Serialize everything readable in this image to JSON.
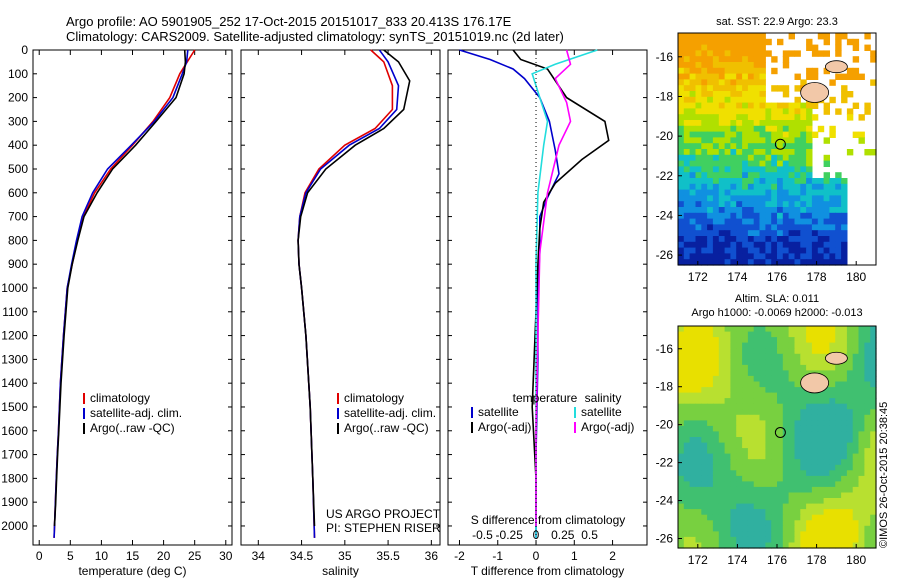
{
  "header": {
    "line1": "Argo profile: AO 5901905_252 17-Oct-2015 20151017_833 20.413S 176.17E",
    "line2": "Climatology: CARS2009. Satellite-adjusted climatology: synTS_20151019.nc (2d later)"
  },
  "copyright": "©IMOS 26-Oct-2015 20:38:45",
  "colors": {
    "climatology": "#e00000",
    "satellite": "#0000cc",
    "argo": "#000000",
    "argo_sal_diff": "#ff00ff",
    "sat_sal_diff": "#22dddd"
  },
  "chart_data": [
    {
      "type": "line",
      "panel": "temperature",
      "xlabel": "temperature (deg C)",
      "ylabel": "",
      "xlim": [
        -1,
        31
      ],
      "ylim": [
        2080,
        0
      ],
      "xticks": [
        "0",
        "5",
        "10",
        "15",
        "20",
        "25",
        "30"
      ],
      "yticks": [
        "0",
        "100",
        "200",
        "300",
        "400",
        "500",
        "600",
        "700",
        "800",
        "900",
        "1000",
        "1100",
        "1200",
        "1300",
        "1400",
        "1500",
        "1600",
        "1700",
        "1800",
        "1900",
        "2000"
      ],
      "legend": [
        "climatology",
        "satellite-adj. clim.",
        "Argo(..raw -QC)"
      ],
      "series": [
        {
          "name": "climatology",
          "color": "#e00000",
          "x": [
            25,
            23.8,
            22.6,
            21,
            18.3,
            15,
            11.5,
            8.9,
            7.1,
            6.1,
            5.3,
            4.5,
            3.9,
            3.4,
            3.1,
            2.9,
            2.75,
            2.6,
            2.4
          ],
          "y": [
            0,
            50,
            100,
            200,
            300,
            400,
            500,
            600,
            700,
            800,
            900,
            1000,
            1200,
            1400,
            1600,
            1700,
            1800,
            1900,
            2050
          ]
        },
        {
          "name": "satellite-adj. clim.",
          "color": "#0000cc",
          "x": [
            23.9,
            23.7,
            23,
            21.5,
            18.5,
            14.8,
            11,
            8.6,
            6.9,
            6,
            5.2,
            4.5,
            3.9,
            3.4,
            3.1,
            2.9,
            2.75,
            2.6,
            2.4
          ],
          "y": [
            0,
            50,
            100,
            200,
            300,
            400,
            500,
            600,
            700,
            800,
            900,
            1000,
            1200,
            1400,
            1600,
            1700,
            1800,
            1900,
            2050
          ]
        },
        {
          "name": "Argo(..raw -QC)",
          "color": "#000000",
          "x": [
            23.4,
            23.5,
            23.3,
            22,
            18.8,
            15.5,
            11.8,
            9.3,
            7.2,
            6.2,
            5.3,
            4.6,
            4,
            3.5,
            3.15,
            2.95,
            2.8,
            2.65,
            2.45
          ],
          "y": [
            0,
            50,
            100,
            200,
            300,
            400,
            500,
            600,
            700,
            800,
            900,
            1000,
            1200,
            1400,
            1600,
            1700,
            1800,
            1900,
            2000
          ]
        }
      ]
    },
    {
      "type": "line",
      "panel": "salinity",
      "xlabel": "salinity",
      "ylabel": "",
      "xlim": [
        33.8,
        36.1
      ],
      "ylim": [
        2080,
        0
      ],
      "xticks": [
        "34",
        "34.5",
        "35",
        "35.5",
        "36"
      ],
      "legend": [
        "climatology",
        "satellite-adj. clim.",
        "Argo(..raw -QC)"
      ],
      "annotation": [
        "US ARGO PROJECT",
        "PI: STEPHEN RISER"
      ],
      "series": [
        {
          "name": "climatology",
          "color": "#e00000",
          "x": [
            35.3,
            35.45,
            35.55,
            35.55,
            35.35,
            35.0,
            34.7,
            34.54,
            34.48,
            34.46,
            34.47,
            34.5,
            34.55,
            34.6,
            34.63,
            34.65
          ],
          "y": [
            0,
            50,
            150,
            250,
            330,
            400,
            500,
            600,
            700,
            800,
            900,
            1000,
            1200,
            1500,
            1800,
            2050
          ]
        },
        {
          "name": "satellite-adj. clim.",
          "color": "#0000cc",
          "x": [
            35.4,
            35.5,
            35.62,
            35.6,
            35.4,
            35.05,
            34.72,
            34.55,
            34.48,
            34.46,
            34.47,
            34.5,
            34.55,
            34.6,
            34.63,
            34.65
          ],
          "y": [
            0,
            50,
            150,
            250,
            330,
            400,
            500,
            600,
            700,
            800,
            900,
            1000,
            1200,
            1500,
            1800,
            2050
          ]
        },
        {
          "name": "Argo(..raw -QC)",
          "color": "#000000",
          "x": [
            35.45,
            35.62,
            35.75,
            35.68,
            35.45,
            35.12,
            34.78,
            34.57,
            34.49,
            34.46,
            34.47,
            34.5,
            34.55,
            34.6,
            34.63,
            34.65
          ],
          "y": [
            0,
            50,
            130,
            250,
            330,
            400,
            500,
            600,
            700,
            800,
            900,
            1000,
            1200,
            1500,
            1800,
            2000
          ]
        }
      ]
    },
    {
      "type": "line",
      "panel": "difference",
      "xlabel": "T difference from climatology",
      "xlabel_top": "S difference from climatology",
      "xlim": [
        -2.3,
        2.9
      ],
      "ylim": [
        2080,
        0
      ],
      "xticks": [
        "-2",
        "-1",
        "0",
        "1",
        "2"
      ],
      "xticks_top": [
        "-0.5",
        "-0.25",
        "0",
        "0.25",
        "0.5"
      ],
      "legend_headers": [
        "temperature",
        "salinity"
      ],
      "legend": [
        "satellite",
        "Argo(-adj)",
        "satellite",
        "Argo(-adj)"
      ],
      "series": [
        {
          "name": "satellite",
          "color": "#0000cc",
          "x": [
            -2,
            -1.2,
            -0.6,
            -0.3,
            0.1,
            0.35,
            0.5,
            0.6,
            0.3,
            0.1,
            0.1,
            0.05,
            0.05,
            0.0,
            0.0
          ],
          "y": [
            0,
            40,
            80,
            120,
            200,
            300,
            420,
            520,
            620,
            700,
            850,
            1000,
            1300,
            1700,
            2050
          ]
        },
        {
          "name": "Argo(-adj)",
          "color": "#000000",
          "x": [
            -0.6,
            -0.4,
            0.3,
            0.8,
            1.8,
            1.9,
            1.2,
            0.5,
            0.2,
            0.1,
            0.05,
            0.0,
            -0.1,
            0.0,
            0.0
          ],
          "y": [
            0,
            40,
            80,
            200,
            300,
            380,
            460,
            560,
            640,
            750,
            900,
            1100,
            1500,
            1800,
            2000
          ]
        },
        {
          "name": "satellite (salinity)",
          "color": "#22dddd",
          "x": [
            1.6,
            0.5,
            -0.1,
            0.1,
            0.3,
            0.2,
            0.05,
            0.0,
            0.0,
            0.0,
            0.0
          ],
          "y": [
            0,
            60,
            100,
            200,
            300,
            400,
            600,
            900,
            1300,
            1700,
            2050
          ]
        },
        {
          "name": "Argo(-adj) (salinity)",
          "color": "#ff00ff",
          "x": [
            0.8,
            0.9,
            0.5,
            0.8,
            0.9,
            0.6,
            0.3,
            0.1,
            0.05,
            0.0,
            0.0
          ],
          "y": [
            0,
            60,
            120,
            220,
            300,
            400,
            600,
            850,
            1200,
            1600,
            2000
          ]
        }
      ]
    },
    {
      "type": "heatmap",
      "panel": "sst-map",
      "title": "sat. SST: 22.9  Argo: 23.3",
      "xlim": [
        171,
        181
      ],
      "ylim": [
        -26.5,
        -14.8
      ],
      "xticks": [
        "172",
        "174",
        "176",
        "178",
        "180"
      ],
      "yticks": [
        "-16",
        "-18",
        "-20",
        "-22",
        "-24",
        "-26"
      ],
      "marker": {
        "lon": 176.17,
        "lat": -20.41
      }
    },
    {
      "type": "heatmap",
      "panel": "sla-map",
      "title": "Altim. SLA: 0.011",
      "subtitle": "Argo h1000: -0.0069 h2000: -0.013",
      "xlim": [
        171,
        181
      ],
      "ylim": [
        -26.5,
        -14.8
      ],
      "xticks": [
        "172",
        "174",
        "176",
        "178",
        "180"
      ],
      "yticks": [
        "-16",
        "-18",
        "-20",
        "-22",
        "-24",
        "-26"
      ],
      "marker": {
        "lon": 176.17,
        "lat": -20.41
      }
    }
  ]
}
